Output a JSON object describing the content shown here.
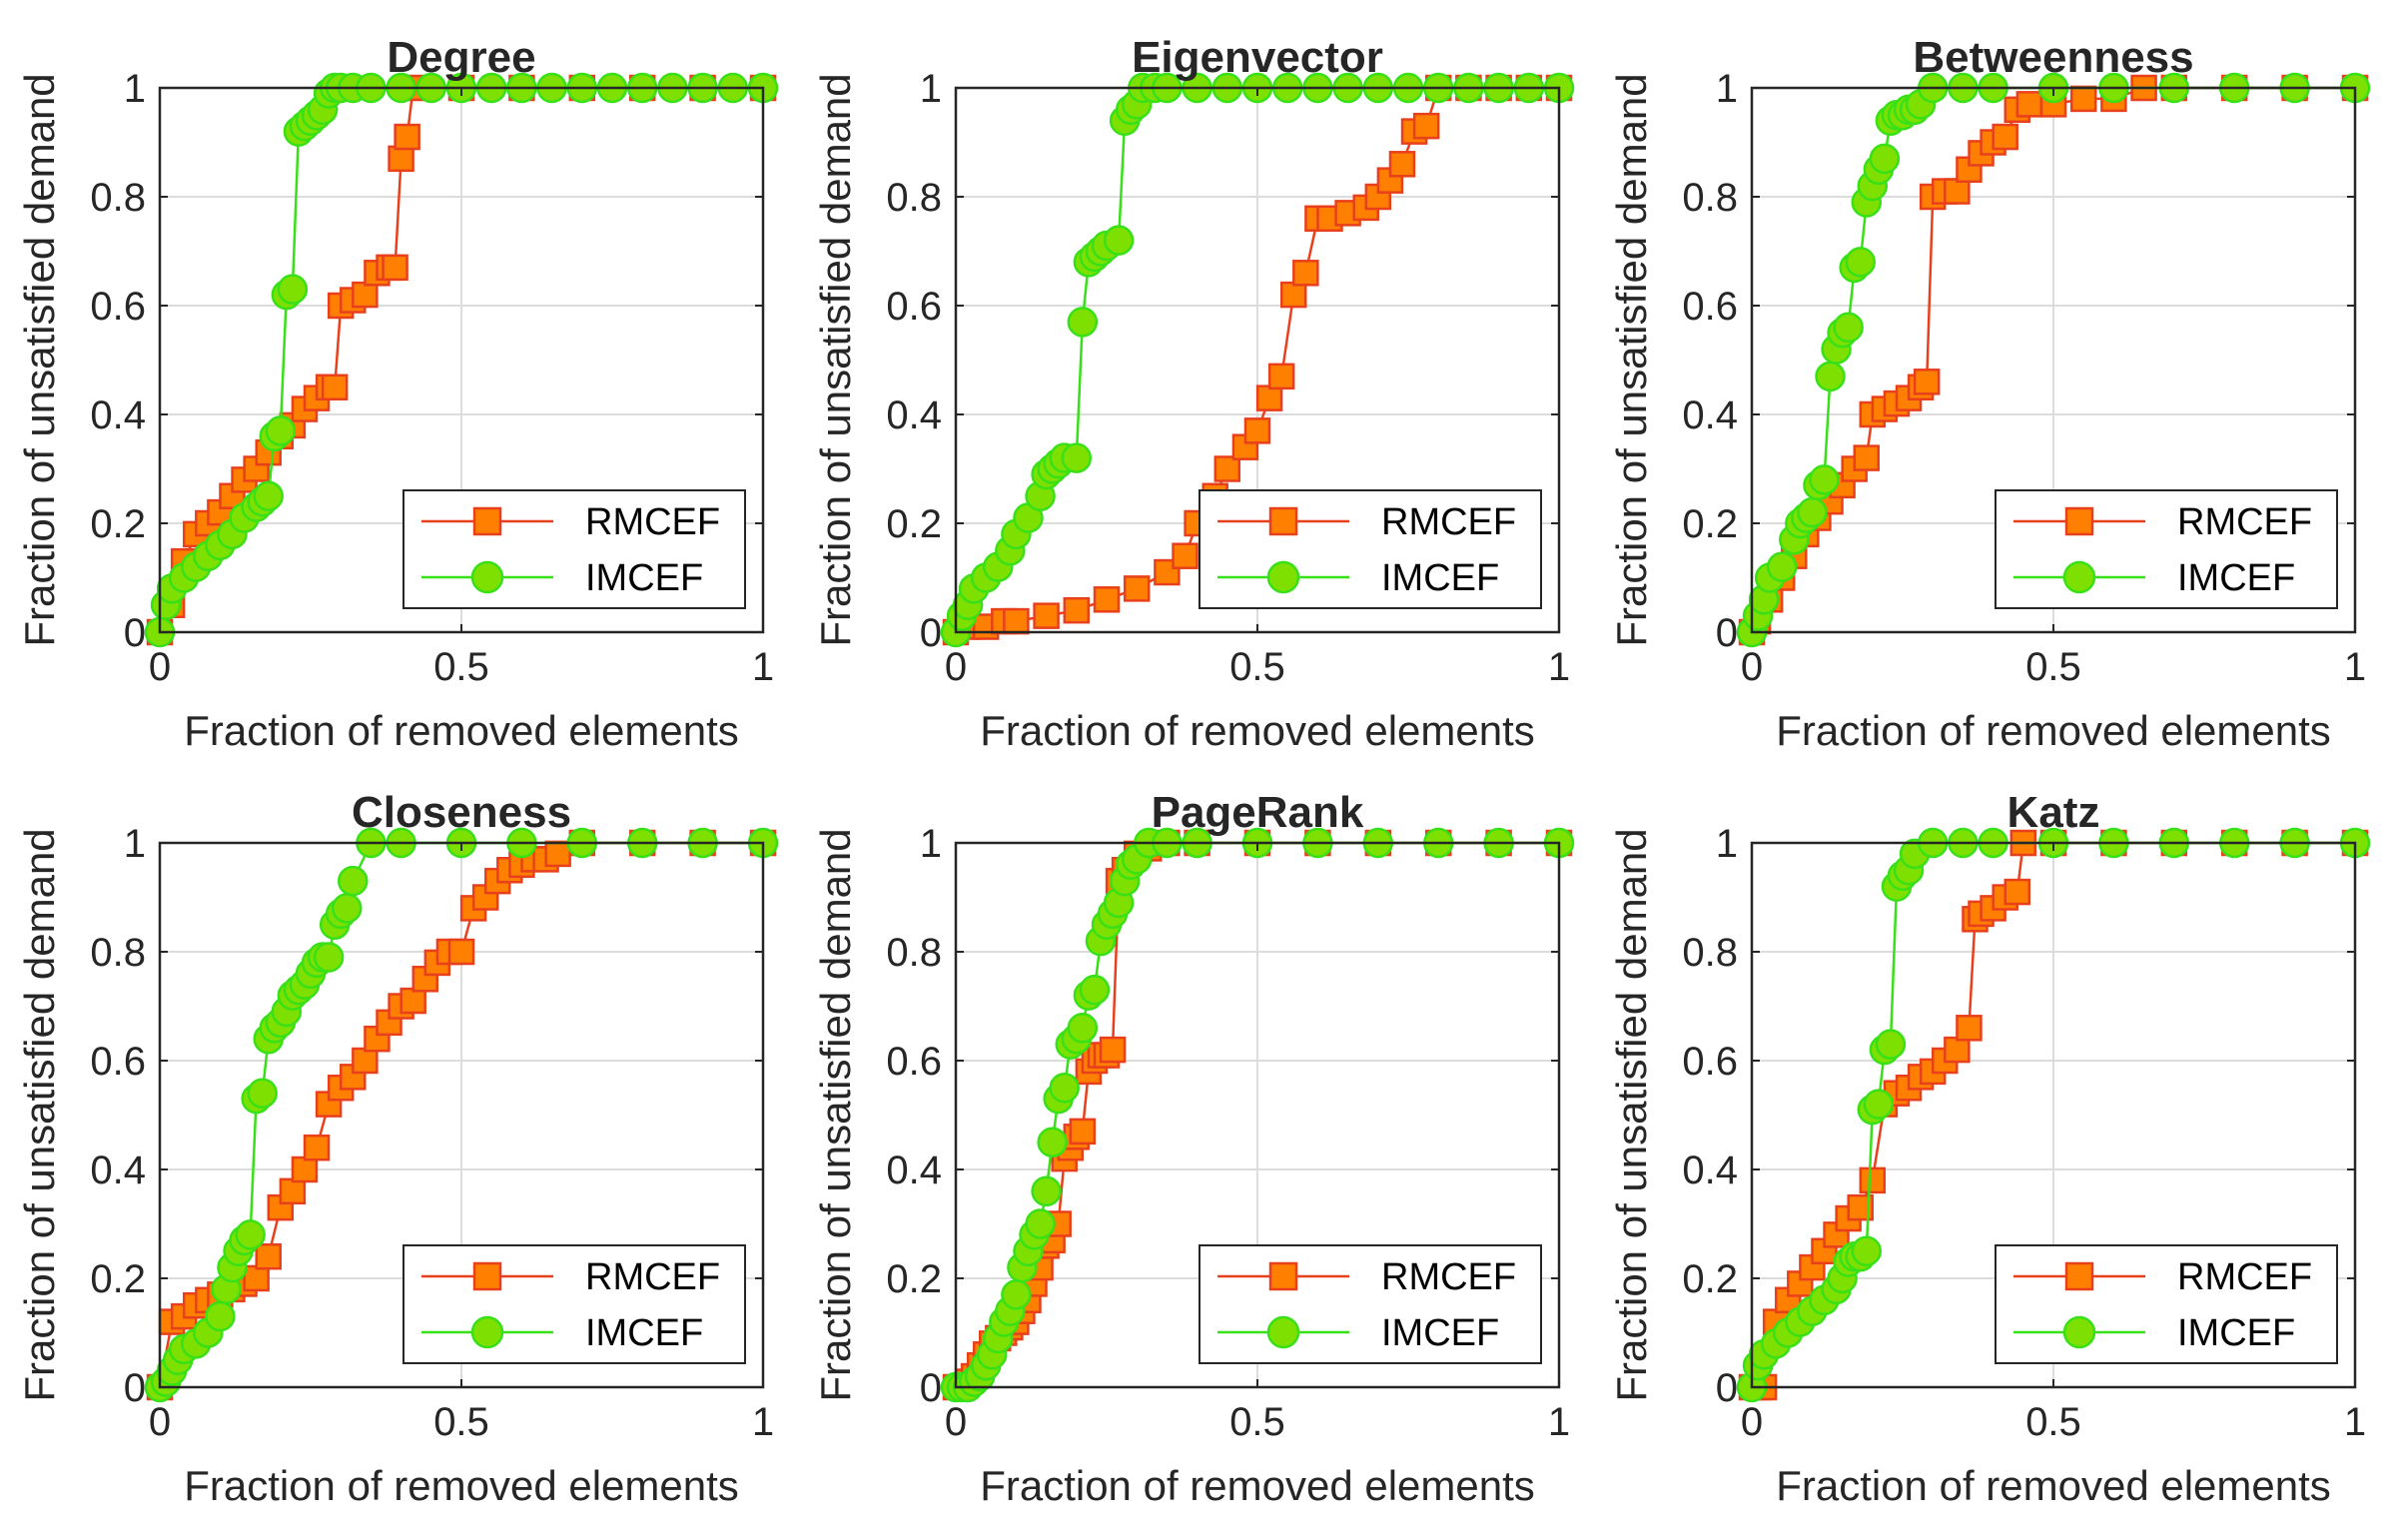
{
  "colors": {
    "rmcef_line": "#e8401c",
    "rmcef_marker": "#ff7f00",
    "imcef_line": "#38e018",
    "imcef_marker": "#7ee000",
    "grid": "#dcdcdc",
    "axis": "#262626"
  },
  "chart_data": [
    {
      "type": "line",
      "title": "Degree",
      "xlabel": "Fraction of removed elements",
      "ylabel": "Fraction of unsatisfied demand",
      "xlim": [
        0,
        1
      ],
      "ylim": [
        0,
        1
      ],
      "xticks": [
        "0",
        "0.5",
        "1"
      ],
      "yticks": [
        "0",
        "0.2",
        "0.4",
        "0.6",
        "0.8",
        "1"
      ],
      "grid": true,
      "legend": "bottom-right",
      "series": [
        {
          "name": "RMCEF",
          "x": [
            0,
            0.02,
            0.04,
            0.06,
            0.08,
            0.1,
            0.12,
            0.14,
            0.16,
            0.18,
            0.2,
            0.22,
            0.24,
            0.26,
            0.28,
            0.29,
            0.3,
            0.32,
            0.34,
            0.36,
            0.38,
            0.39,
            0.4,
            0.41,
            0.42,
            0.5,
            0.6,
            0.7,
            0.8,
            0.9,
            1.0
          ],
          "y": [
            0,
            0.05,
            0.13,
            0.18,
            0.2,
            0.22,
            0.25,
            0.28,
            0.3,
            0.33,
            0.36,
            0.38,
            0.41,
            0.43,
            0.45,
            0.45,
            0.6,
            0.61,
            0.62,
            0.66,
            0.67,
            0.67,
            0.87,
            0.91,
            1.0,
            1.0,
            1.0,
            1.0,
            1.0,
            1.0,
            1.0
          ]
        },
        {
          "name": "IMCEF",
          "x": [
            0,
            0.01,
            0.02,
            0.04,
            0.06,
            0.08,
            0.1,
            0.12,
            0.14,
            0.16,
            0.17,
            0.18,
            0.19,
            0.2,
            0.21,
            0.22,
            0.23,
            0.24,
            0.25,
            0.26,
            0.27,
            0.28,
            0.29,
            0.3,
            0.32,
            0.35,
            0.4,
            0.45,
            0.5,
            0.55,
            0.6,
            0.65,
            0.7,
            0.75,
            0.8,
            0.85,
            0.9,
            0.95,
            1.0
          ],
          "y": [
            0,
            0.05,
            0.08,
            0.1,
            0.12,
            0.14,
            0.16,
            0.18,
            0.21,
            0.23,
            0.24,
            0.25,
            0.36,
            0.37,
            0.62,
            0.63,
            0.92,
            0.93,
            0.94,
            0.95,
            0.96,
            0.99,
            1.0,
            1.0,
            1.0,
            1.0,
            1.0,
            1.0,
            1.0,
            1.0,
            1.0,
            1.0,
            1.0,
            1.0,
            1.0,
            1.0,
            1.0,
            1.0,
            1.0
          ]
        }
      ]
    },
    {
      "type": "line",
      "title": "Eigenvector",
      "xlabel": "Fraction of removed elements",
      "ylabel": "Fraction of unsatisfied demand",
      "xlim": [
        0,
        1
      ],
      "ylim": [
        0,
        1
      ],
      "xticks": [
        "0",
        "0.5",
        "1"
      ],
      "yticks": [
        "0",
        "0.2",
        "0.4",
        "0.6",
        "0.8",
        "1"
      ],
      "grid": true,
      "legend": "bottom-right",
      "series": [
        {
          "name": "RMCEF",
          "x": [
            0,
            0.02,
            0.05,
            0.08,
            0.1,
            0.15,
            0.2,
            0.25,
            0.3,
            0.35,
            0.38,
            0.4,
            0.43,
            0.45,
            0.48,
            0.5,
            0.52,
            0.54,
            0.56,
            0.58,
            0.6,
            0.62,
            0.65,
            0.68,
            0.7,
            0.72,
            0.74,
            0.76,
            0.78,
            0.8,
            0.85,
            0.9,
            0.95,
            1.0
          ],
          "y": [
            0,
            0.01,
            0.01,
            0.02,
            0.02,
            0.03,
            0.04,
            0.06,
            0.08,
            0.11,
            0.14,
            0.2,
            0.25,
            0.3,
            0.34,
            0.37,
            0.43,
            0.47,
            0.62,
            0.66,
            0.76,
            0.76,
            0.77,
            0.78,
            0.8,
            0.83,
            0.86,
            0.92,
            0.93,
            1.0,
            1.0,
            1.0,
            1.0,
            1.0
          ]
        },
        {
          "name": "IMCEF",
          "x": [
            0,
            0.01,
            0.02,
            0.03,
            0.05,
            0.07,
            0.09,
            0.1,
            0.12,
            0.14,
            0.15,
            0.16,
            0.17,
            0.18,
            0.2,
            0.21,
            0.22,
            0.23,
            0.24,
            0.25,
            0.27,
            0.28,
            0.29,
            0.3,
            0.31,
            0.33,
            0.35,
            0.4,
            0.45,
            0.5,
            0.55,
            0.6,
            0.65,
            0.7,
            0.75,
            0.8,
            0.85,
            0.9,
            0.95,
            1.0
          ],
          "y": [
            0,
            0.03,
            0.05,
            0.08,
            0.1,
            0.12,
            0.15,
            0.18,
            0.21,
            0.25,
            0.29,
            0.3,
            0.31,
            0.32,
            0.32,
            0.57,
            0.68,
            0.69,
            0.7,
            0.71,
            0.72,
            0.94,
            0.96,
            0.97,
            1.0,
            1.0,
            1.0,
            1.0,
            1.0,
            1.0,
            1.0,
            1.0,
            1.0,
            1.0,
            1.0,
            1.0,
            1.0,
            1.0,
            1.0,
            1.0
          ]
        }
      ]
    },
    {
      "type": "line",
      "title": "Betweenness",
      "xlabel": "Fraction of removed elements",
      "ylabel": "Fraction of unsatisfied demand",
      "xlim": [
        0,
        1
      ],
      "ylim": [
        0,
        1
      ],
      "xticks": [
        "0",
        "0.5",
        "1"
      ],
      "yticks": [
        "0",
        "0.2",
        "0.4",
        "0.6",
        "0.8",
        "1"
      ],
      "grid": true,
      "legend": "bottom-right",
      "series": [
        {
          "name": "RMCEF",
          "x": [
            0,
            0.01,
            0.03,
            0.05,
            0.07,
            0.09,
            0.11,
            0.13,
            0.15,
            0.17,
            0.19,
            0.2,
            0.22,
            0.24,
            0.26,
            0.28,
            0.29,
            0.3,
            0.32,
            0.34,
            0.36,
            0.38,
            0.4,
            0.42,
            0.44,
            0.46,
            0.5,
            0.55,
            0.6,
            0.65,
            0.7,
            0.8,
            0.9,
            1.0
          ],
          "y": [
            0,
            0.02,
            0.06,
            0.1,
            0.14,
            0.18,
            0.21,
            0.24,
            0.27,
            0.3,
            0.32,
            0.4,
            0.41,
            0.42,
            0.43,
            0.45,
            0.46,
            0.8,
            0.81,
            0.81,
            0.85,
            0.88,
            0.9,
            0.91,
            0.96,
            0.97,
            0.97,
            0.98,
            0.98,
            1.0,
            1.0,
            1.0,
            1.0,
            1.0
          ]
        },
        {
          "name": "IMCEF",
          "x": [
            0,
            0.01,
            0.02,
            0.03,
            0.05,
            0.07,
            0.08,
            0.09,
            0.1,
            0.11,
            0.12,
            0.13,
            0.14,
            0.15,
            0.16,
            0.17,
            0.18,
            0.19,
            0.2,
            0.21,
            0.22,
            0.23,
            0.24,
            0.25,
            0.26,
            0.27,
            0.28,
            0.3,
            0.35,
            0.4,
            0.5,
            0.6,
            0.7,
            0.8,
            0.9,
            1.0
          ],
          "y": [
            0,
            0.03,
            0.06,
            0.1,
            0.12,
            0.17,
            0.2,
            0.21,
            0.22,
            0.27,
            0.28,
            0.47,
            0.52,
            0.55,
            0.56,
            0.67,
            0.68,
            0.79,
            0.82,
            0.85,
            0.87,
            0.94,
            0.95,
            0.95,
            0.96,
            0.96,
            0.97,
            1.0,
            1.0,
            1.0,
            1.0,
            1.0,
            1.0,
            1.0,
            1.0,
            1.0
          ]
        }
      ]
    },
    {
      "type": "line",
      "title": "Closeness",
      "xlabel": "Fraction of removed elements",
      "ylabel": "Fraction of unsatisfied demand",
      "xlim": [
        0,
        1
      ],
      "ylim": [
        0,
        1
      ],
      "xticks": [
        "0",
        "0.5",
        "1"
      ],
      "yticks": [
        "0",
        "0.2",
        "0.4",
        "0.6",
        "0.8",
        "1"
      ],
      "grid": true,
      "legend": "bottom-right",
      "series": [
        {
          "name": "RMCEF",
          "x": [
            0,
            0.02,
            0.04,
            0.06,
            0.08,
            0.1,
            0.12,
            0.14,
            0.16,
            0.18,
            0.2,
            0.22,
            0.24,
            0.26,
            0.28,
            0.3,
            0.32,
            0.34,
            0.36,
            0.38,
            0.4,
            0.42,
            0.44,
            0.46,
            0.48,
            0.5,
            0.52,
            0.54,
            0.56,
            0.58,
            0.6,
            0.62,
            0.64,
            0.66,
            0.7,
            0.8,
            0.9,
            1.0
          ],
          "y": [
            0,
            0.12,
            0.13,
            0.15,
            0.16,
            0.17,
            0.18,
            0.19,
            0.2,
            0.24,
            0.33,
            0.36,
            0.4,
            0.44,
            0.52,
            0.55,
            0.57,
            0.6,
            0.64,
            0.67,
            0.7,
            0.71,
            0.75,
            0.78,
            0.8,
            0.8,
            0.88,
            0.9,
            0.93,
            0.95,
            0.96,
            0.97,
            0.97,
            0.98,
            1.0,
            1.0,
            1.0,
            1.0
          ]
        },
        {
          "name": "IMCEF",
          "x": [
            0,
            0.01,
            0.02,
            0.03,
            0.04,
            0.06,
            0.08,
            0.1,
            0.11,
            0.12,
            0.13,
            0.14,
            0.15,
            0.16,
            0.17,
            0.18,
            0.19,
            0.2,
            0.21,
            0.22,
            0.23,
            0.24,
            0.25,
            0.26,
            0.27,
            0.28,
            0.29,
            0.3,
            0.31,
            0.32,
            0.35,
            0.4,
            0.5,
            0.6,
            0.7,
            0.8,
            0.9,
            1.0
          ],
          "y": [
            0,
            0.01,
            0.03,
            0.05,
            0.07,
            0.08,
            0.1,
            0.13,
            0.18,
            0.22,
            0.25,
            0.27,
            0.28,
            0.53,
            0.54,
            0.64,
            0.66,
            0.67,
            0.69,
            0.72,
            0.73,
            0.74,
            0.76,
            0.78,
            0.79,
            0.79,
            0.85,
            0.87,
            0.88,
            0.93,
            1.0,
            1.0,
            1.0,
            1.0,
            1.0,
            1.0,
            1.0,
            1.0
          ]
        }
      ]
    },
    {
      "type": "line",
      "title": "PageRank",
      "xlabel": "Fraction of removed elements",
      "ylabel": "Fraction of unsatisfied demand",
      "xlim": [
        0,
        1
      ],
      "ylim": [
        0,
        1
      ],
      "xticks": [
        "0",
        "0.5",
        "1"
      ],
      "yticks": [
        "0",
        "0.2",
        "0.4",
        "0.6",
        "0.8",
        "1"
      ],
      "grid": true,
      "legend": "bottom-right",
      "series": [
        {
          "name": "RMCEF",
          "x": [
            0,
            0.01,
            0.02,
            0.03,
            0.04,
            0.05,
            0.06,
            0.07,
            0.08,
            0.09,
            0.1,
            0.11,
            0.12,
            0.13,
            0.14,
            0.15,
            0.16,
            0.17,
            0.18,
            0.19,
            0.2,
            0.21,
            0.22,
            0.23,
            0.24,
            0.25,
            0.26,
            0.27,
            0.28,
            0.3,
            0.32,
            0.35,
            0.4,
            0.5,
            0.6,
            0.7,
            0.8,
            0.9,
            1.0
          ],
          "y": [
            0,
            0.0,
            0.01,
            0.02,
            0.04,
            0.06,
            0.08,
            0.09,
            0.1,
            0.11,
            0.12,
            0.14,
            0.16,
            0.19,
            0.22,
            0.26,
            0.27,
            0.3,
            0.42,
            0.44,
            0.46,
            0.47,
            0.58,
            0.6,
            0.61,
            0.61,
            0.62,
            0.93,
            0.95,
            0.98,
            0.99,
            1.0,
            1.0,
            1.0,
            1.0,
            1.0,
            1.0,
            1.0,
            1.0
          ]
        },
        {
          "name": "IMCEF",
          "x": [
            0,
            0.01,
            0.02,
            0.03,
            0.04,
            0.05,
            0.06,
            0.07,
            0.08,
            0.09,
            0.1,
            0.11,
            0.12,
            0.13,
            0.14,
            0.15,
            0.16,
            0.17,
            0.18,
            0.19,
            0.2,
            0.21,
            0.22,
            0.23,
            0.24,
            0.25,
            0.26,
            0.27,
            0.28,
            0.29,
            0.3,
            0.32,
            0.35,
            0.4,
            0.5,
            0.6,
            0.7,
            0.8,
            0.9,
            1.0
          ],
          "y": [
            0,
            0.0,
            0.0,
            0.01,
            0.02,
            0.04,
            0.06,
            0.09,
            0.12,
            0.14,
            0.17,
            0.22,
            0.25,
            0.28,
            0.3,
            0.36,
            0.45,
            0.53,
            0.55,
            0.63,
            0.64,
            0.66,
            0.72,
            0.73,
            0.82,
            0.85,
            0.87,
            0.89,
            0.93,
            0.96,
            0.97,
            1.0,
            1.0,
            1.0,
            1.0,
            1.0,
            1.0,
            1.0,
            1.0,
            1.0
          ]
        }
      ]
    },
    {
      "type": "line",
      "title": "Katz",
      "xlabel": "Fraction of removed elements",
      "ylabel": "Fraction of unsatisfied demand",
      "xlim": [
        0,
        1
      ],
      "ylim": [
        0,
        1
      ],
      "xticks": [
        "0",
        "0.5",
        "1"
      ],
      "yticks": [
        "0",
        "0.2",
        "0.4",
        "0.6",
        "0.8",
        "1"
      ],
      "grid": true,
      "legend": "bottom-right",
      "series": [
        {
          "name": "RMCEF",
          "x": [
            0,
            0.01,
            0.02,
            0.04,
            0.06,
            0.08,
            0.1,
            0.12,
            0.14,
            0.16,
            0.18,
            0.2,
            0.22,
            0.24,
            0.26,
            0.28,
            0.3,
            0.32,
            0.34,
            0.36,
            0.37,
            0.38,
            0.4,
            0.42,
            0.44,
            0.45,
            0.5,
            0.6,
            0.7,
            0.8,
            0.9,
            1.0
          ],
          "y": [
            0,
            0.0,
            0.0,
            0.12,
            0.16,
            0.19,
            0.22,
            0.25,
            0.28,
            0.31,
            0.33,
            0.38,
            0.52,
            0.54,
            0.55,
            0.57,
            0.58,
            0.6,
            0.62,
            0.66,
            0.86,
            0.87,
            0.88,
            0.9,
            0.91,
            1.0,
            1.0,
            1.0,
            1.0,
            1.0,
            1.0,
            1.0
          ]
        },
        {
          "name": "IMCEF",
          "x": [
            0,
            0.01,
            0.02,
            0.04,
            0.06,
            0.08,
            0.1,
            0.12,
            0.14,
            0.15,
            0.16,
            0.17,
            0.18,
            0.19,
            0.2,
            0.21,
            0.22,
            0.23,
            0.24,
            0.25,
            0.26,
            0.27,
            0.3,
            0.35,
            0.4,
            0.5,
            0.6,
            0.7,
            0.8,
            0.9,
            1.0
          ],
          "y": [
            0,
            0.04,
            0.06,
            0.08,
            0.1,
            0.12,
            0.14,
            0.16,
            0.18,
            0.2,
            0.23,
            0.24,
            0.24,
            0.25,
            0.51,
            0.52,
            0.62,
            0.63,
            0.92,
            0.94,
            0.95,
            0.98,
            1.0,
            1.0,
            1.0,
            1.0,
            1.0,
            1.0,
            1.0,
            1.0,
            1.0
          ]
        }
      ]
    }
  ]
}
